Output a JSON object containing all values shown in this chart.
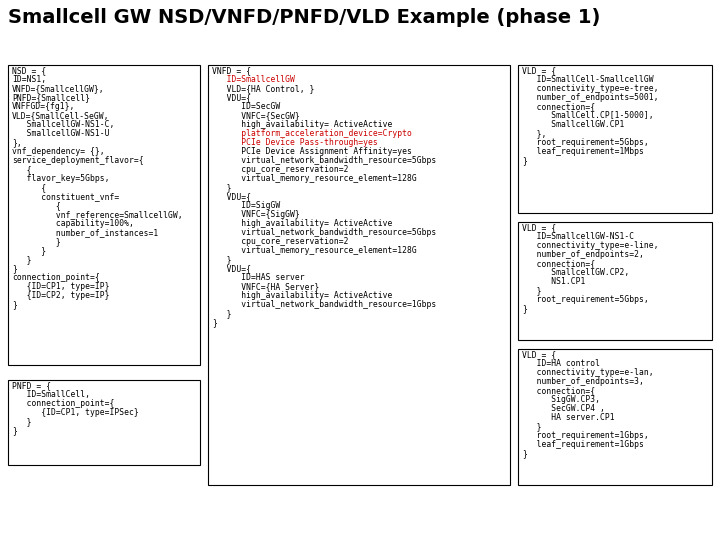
{
  "title": "Smallcell GW NSD/VNFD/PNFD/VLD Example (phase 1)",
  "title_fontsize": 14,
  "title_fontweight": "bold",
  "bg_color": "#ffffff",
  "box_edge_color": "#000000",
  "box_face_color": "#ffffff",
  "font_size": 5.8,
  "red_color": "#cc0000",
  "nsd_lines": [
    {
      "t": "NSD = {",
      "indent": 0,
      "color": "#000000"
    },
    {
      "t": "ID=NS1,",
      "indent": 0,
      "color": "#000000"
    },
    {
      "t": "VNFD={SmallcellGW},",
      "indent": 0,
      "color": "#000000"
    },
    {
      "t": "PNFD={Smallcell}",
      "indent": 0,
      "color": "#000000"
    },
    {
      "t": "VNFFGD={fg1},",
      "indent": 0,
      "color": "#000000"
    },
    {
      "t": "VLD={SmallCell-SeGW,",
      "indent": 0,
      "color": "#000000"
    },
    {
      "t": "SmallcellGW-NS1-C,",
      "indent": 1,
      "color": "#000000"
    },
    {
      "t": "SmallcellGW-NS1-U",
      "indent": 1,
      "color": "#000000"
    },
    {
      "t": "},",
      "indent": 0,
      "color": "#000000"
    },
    {
      "t": "vnf_dependency= {},",
      "indent": 0,
      "color": "#000000"
    },
    {
      "t": "service_deployment_flavor={",
      "indent": 0,
      "color": "#000000"
    },
    {
      "t": "{",
      "indent": 1,
      "color": "#000000"
    },
    {
      "t": "flavor_key=5Gbps,",
      "indent": 1,
      "color": "#000000"
    },
    {
      "t": "{",
      "indent": 2,
      "color": "#000000"
    },
    {
      "t": "constituent_vnf=",
      "indent": 2,
      "color": "#000000"
    },
    {
      "t": "{",
      "indent": 3,
      "color": "#000000"
    },
    {
      "t": "vnf_reference=SmallcellGW,",
      "indent": 3,
      "color": "#000000"
    },
    {
      "t": "capability=100%,",
      "indent": 3,
      "color": "#000000"
    },
    {
      "t": "number_of_instances=1",
      "indent": 3,
      "color": "#000000"
    },
    {
      "t": "}",
      "indent": 3,
      "color": "#000000"
    },
    {
      "t": "}",
      "indent": 2,
      "color": "#000000"
    },
    {
      "t": "}",
      "indent": 1,
      "color": "#000000"
    },
    {
      "t": "}",
      "indent": 0,
      "color": "#000000"
    },
    {
      "t": "connection_point={",
      "indent": 0,
      "color": "#000000"
    },
    {
      "t": "{ID=CP1, type=IP}",
      "indent": 1,
      "color": "#000000"
    },
    {
      "t": "{ID=CP2, type=IP}",
      "indent": 1,
      "color": "#000000"
    },
    {
      "t": "}",
      "indent": 0,
      "color": "#000000"
    }
  ],
  "pnfd_lines": [
    {
      "t": "PNFD = {",
      "indent": 0,
      "color": "#000000"
    },
    {
      "t": "ID=SmallCell,",
      "indent": 1,
      "color": "#000000"
    },
    {
      "t": "connection_point={",
      "indent": 1,
      "color": "#000000"
    },
    {
      "t": "{ID=CP1, type=IPSec}",
      "indent": 2,
      "color": "#000000"
    },
    {
      "t": "}",
      "indent": 1,
      "color": "#000000"
    },
    {
      "t": "}",
      "indent": 0,
      "color": "#000000"
    }
  ],
  "vnfd_lines": [
    {
      "t": "VNFD = {",
      "indent": 0,
      "color": "#000000"
    },
    {
      "t": "ID=SmallcellGW",
      "indent": 1,
      "color": "#cc0000"
    },
    {
      "t": "VLD={HA Control, }",
      "indent": 1,
      "color": "#000000"
    },
    {
      "t": "VDU={",
      "indent": 1,
      "color": "#000000"
    },
    {
      "t": "ID=SecGW",
      "indent": 2,
      "color": "#000000"
    },
    {
      "t": "VNFC={SecGW}",
      "indent": 2,
      "color": "#000000"
    },
    {
      "t": "high_availability= ActiveActive",
      "indent": 2,
      "color": "#000000"
    },
    {
      "t": "platform_acceleration_device=Crypto",
      "indent": 2,
      "color": "#cc0000"
    },
    {
      "t": "PCIe Device Pass-through=yes",
      "indent": 2,
      "color": "#cc0000"
    },
    {
      "t": "PCIe Device Assignment Affinity=yes",
      "indent": 2,
      "color": "#000000"
    },
    {
      "t": "virtual_network_bandwidth_resource=5Gbps",
      "indent": 2,
      "color": "#000000"
    },
    {
      "t": "cpu_core_reservation=2",
      "indent": 2,
      "color": "#000000"
    },
    {
      "t": "virtual_memory_resource_element=128G",
      "indent": 2,
      "color": "#000000"
    },
    {
      "t": "}",
      "indent": 1,
      "color": "#000000"
    },
    {
      "t": "VDU={",
      "indent": 1,
      "color": "#000000"
    },
    {
      "t": "ID=SigGW",
      "indent": 2,
      "color": "#000000"
    },
    {
      "t": "VNFC={SigGW}",
      "indent": 2,
      "color": "#000000"
    },
    {
      "t": "high_availability= ActiveActive",
      "indent": 2,
      "color": "#000000"
    },
    {
      "t": "virtual_network_bandwidth_resource=5Gbps",
      "indent": 2,
      "color": "#000000"
    },
    {
      "t": "cpu_core_reservation=2",
      "indent": 2,
      "color": "#000000"
    },
    {
      "t": "virtual_memory_resource_element=128G",
      "indent": 2,
      "color": "#000000"
    },
    {
      "t": "}",
      "indent": 1,
      "color": "#000000"
    },
    {
      "t": "VDU={",
      "indent": 1,
      "color": "#000000"
    },
    {
      "t": "ID=HAS server",
      "indent": 2,
      "color": "#000000"
    },
    {
      "t": "VNFC={HA Server}",
      "indent": 2,
      "color": "#000000"
    },
    {
      "t": "high_availability= ActiveActive",
      "indent": 2,
      "color": "#000000"
    },
    {
      "t": "virtual_network_bandwidth_resource=1Gbps",
      "indent": 2,
      "color": "#000000"
    },
    {
      "t": "}",
      "indent": 1,
      "color": "#000000"
    },
    {
      "t": "}",
      "indent": 0,
      "color": "#000000"
    }
  ],
  "vld1_lines": [
    {
      "t": "VLD = {",
      "indent": 0,
      "color": "#000000"
    },
    {
      "t": "ID=SmallCell-SmallcellGW",
      "indent": 1,
      "color": "#000000"
    },
    {
      "t": "connectivity_type=e-tree,",
      "indent": 1,
      "color": "#000000"
    },
    {
      "t": "number_of_endpoints=5001,",
      "indent": 1,
      "color": "#000000"
    },
    {
      "t": "connection={",
      "indent": 1,
      "color": "#000000"
    },
    {
      "t": "SmallCell.CP[1-5000],",
      "indent": 2,
      "color": "#000000"
    },
    {
      "t": "SmallcellGW.CP1",
      "indent": 2,
      "color": "#000000"
    },
    {
      "t": "},",
      "indent": 1,
      "color": "#000000"
    },
    {
      "t": "root_requirement=5Gbps,",
      "indent": 1,
      "color": "#000000"
    },
    {
      "t": "leaf_requirement=1Mbps",
      "indent": 1,
      "color": "#000000"
    },
    {
      "t": "}",
      "indent": 0,
      "color": "#000000"
    }
  ],
  "vld2_lines": [
    {
      "t": "VLD = {",
      "indent": 0,
      "color": "#000000"
    },
    {
      "t": "ID=SmallcellGW-NS1-C",
      "indent": 1,
      "color": "#000000"
    },
    {
      "t": "connectivity_type=e-line,",
      "indent": 1,
      "color": "#000000"
    },
    {
      "t": "number_of_endpoints=2,",
      "indent": 1,
      "color": "#000000"
    },
    {
      "t": "connection={",
      "indent": 1,
      "color": "#000000"
    },
    {
      "t": "SmallcellGW.CP2,",
      "indent": 2,
      "color": "#000000"
    },
    {
      "t": "NS1.CP1",
      "indent": 2,
      "color": "#000000"
    },
    {
      "t": "}",
      "indent": 1,
      "color": "#000000"
    },
    {
      "t": "root_requirement=5Gbps,",
      "indent": 1,
      "color": "#000000"
    },
    {
      "t": "}",
      "indent": 0,
      "color": "#000000"
    }
  ],
  "vld3_lines": [
    {
      "t": "VLD = {",
      "indent": 0,
      "color": "#000000"
    },
    {
      "t": "ID=HA control",
      "indent": 1,
      "color": "#000000"
    },
    {
      "t": "connectivity_type=e-lan,",
      "indent": 1,
      "color": "#000000"
    },
    {
      "t": "number_of_endpoints=3,",
      "indent": 1,
      "color": "#000000"
    },
    {
      "t": "connection={",
      "indent": 1,
      "color": "#000000"
    },
    {
      "t": "SigGW.CP3,",
      "indent": 2,
      "color": "#000000"
    },
    {
      "t": "SecGW.CP4 ,",
      "indent": 2,
      "color": "#000000"
    },
    {
      "t": "HA server.CP1",
      "indent": 2,
      "color": "#000000"
    },
    {
      "t": "}",
      "indent": 1,
      "color": "#000000"
    },
    {
      "t": "root_requirement=1Gbps,",
      "indent": 1,
      "color": "#000000"
    },
    {
      "t": "leaf_requirement=1Gbps",
      "indent": 1,
      "color": "#000000"
    },
    {
      "t": "}",
      "indent": 0,
      "color": "#000000"
    }
  ]
}
